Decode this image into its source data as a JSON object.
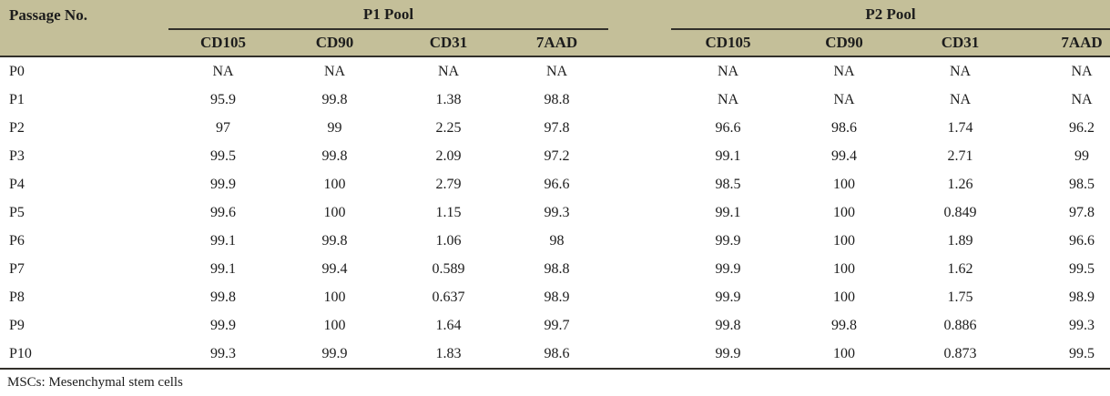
{
  "table": {
    "passage_header": "Passage No.",
    "groups": [
      {
        "label": "P1 Pool",
        "columns": [
          "CD105",
          "CD90",
          "CD31",
          "7AAD"
        ]
      },
      {
        "label": "P2 Pool",
        "columns": [
          "CD105",
          "CD90",
          "CD31",
          "7AAD"
        ]
      }
    ],
    "rows": [
      {
        "passage": "P0",
        "p1": [
          "NA",
          "NA",
          "NA",
          "NA"
        ],
        "p2": [
          "NA",
          "NA",
          "NA",
          "NA"
        ]
      },
      {
        "passage": "P1",
        "p1": [
          "95.9",
          "99.8",
          "1.38",
          "98.8"
        ],
        "p2": [
          "NA",
          "NA",
          "NA",
          "NA"
        ]
      },
      {
        "passage": "P2",
        "p1": [
          "97",
          "99",
          "2.25",
          "97.8"
        ],
        "p2": [
          "96.6",
          "98.6",
          "1.74",
          "96.2"
        ]
      },
      {
        "passage": "P3",
        "p1": [
          "99.5",
          "99.8",
          "2.09",
          "97.2"
        ],
        "p2": [
          "99.1",
          "99.4",
          "2.71",
          "99"
        ]
      },
      {
        "passage": "P4",
        "p1": [
          "99.9",
          "100",
          "2.79",
          "96.6"
        ],
        "p2": [
          "98.5",
          "100",
          "1.26",
          "98.5"
        ]
      },
      {
        "passage": "P5",
        "p1": [
          "99.6",
          "100",
          "1.15",
          "99.3"
        ],
        "p2": [
          "99.1",
          "100",
          "0.849",
          "97.8"
        ]
      },
      {
        "passage": "P6",
        "p1": [
          "99.1",
          "99.8",
          "1.06",
          "98"
        ],
        "p2": [
          "99.9",
          "100",
          "1.89",
          "96.6"
        ]
      },
      {
        "passage": "P7",
        "p1": [
          "99.1",
          "99.4",
          "0.589",
          "98.8"
        ],
        "p2": [
          "99.9",
          "100",
          "1.62",
          "99.5"
        ]
      },
      {
        "passage": "P8",
        "p1": [
          "99.8",
          "100",
          "0.637",
          "98.9"
        ],
        "p2": [
          "99.9",
          "100",
          "1.75",
          "98.9"
        ]
      },
      {
        "passage": "P9",
        "p1": [
          "99.9",
          "100",
          "1.64",
          "99.7"
        ],
        "p2": [
          "99.8",
          "99.8",
          "0.886",
          "99.3"
        ]
      },
      {
        "passage": "P10",
        "p1": [
          "99.3",
          "99.9",
          "1.83",
          "98.6"
        ],
        "p2": [
          "99.9",
          "100",
          "0.873",
          "99.5"
        ]
      }
    ],
    "footnote": "MSCs: Mesenchymal stem cells"
  },
  "colors": {
    "header_bg": "#c4bf99",
    "rule": "#32302a",
    "text": "#1c1c1c",
    "body_bg": "#ffffff"
  }
}
